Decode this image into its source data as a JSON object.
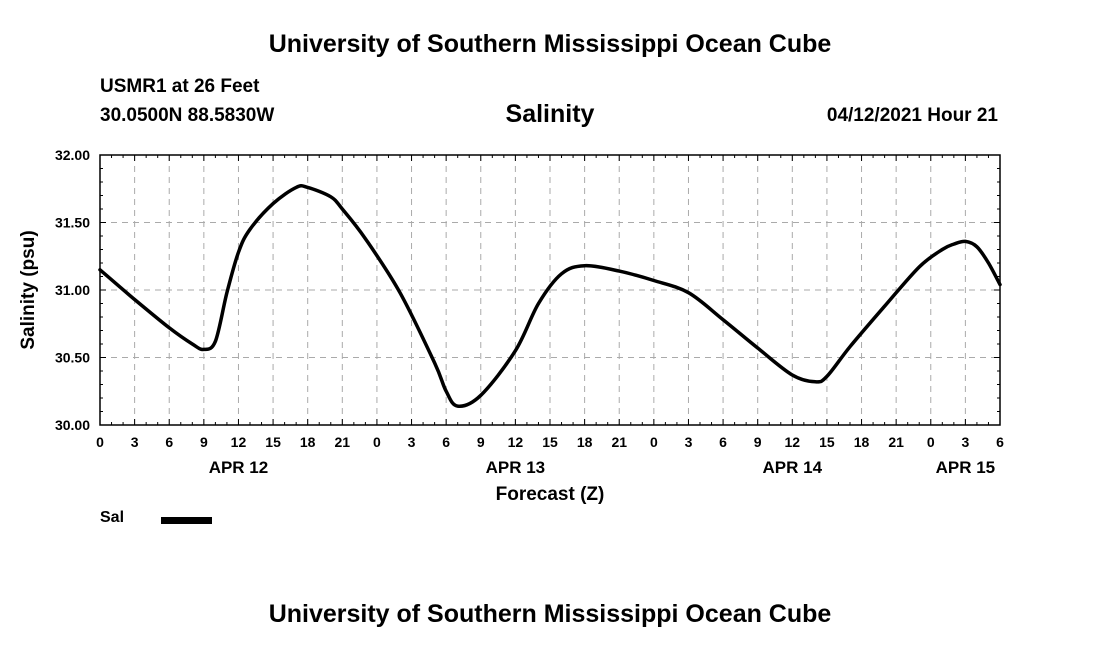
{
  "header": {
    "title": "University of Southern Mississippi Ocean Cube",
    "station": "USMR1 at 26 Feet",
    "coords": "30.0500N  88.5830W",
    "parameter": "Salinity",
    "datetime": "04/12/2021 Hour 21"
  },
  "footer": {
    "title": "University of Southern Mississippi Ocean Cube"
  },
  "legend": {
    "label": "Sal"
  },
  "colors": {
    "line": "#000000",
    "grid": "#aaaaaa"
  },
  "chart_data": {
    "type": "line",
    "title": "Salinity",
    "xlabel": "Forecast (Z)",
    "ylabel": "Salinity (psu)",
    "xlim": [
      0,
      78
    ],
    "ylim": [
      30.0,
      32.0
    ],
    "grid": true,
    "yticks": [
      "30.00",
      "30.50",
      "31.00",
      "31.50",
      "32.00"
    ],
    "ytick_values": [
      30.0,
      30.5,
      31.0,
      31.5,
      32.0
    ],
    "xtick_labels": [
      "0",
      "3",
      "6",
      "9",
      "12",
      "15",
      "18",
      "21",
      "0",
      "3",
      "6",
      "9",
      "12",
      "15",
      "18",
      "21",
      "0",
      "3",
      "6",
      "9",
      "12",
      "15",
      "18",
      "21",
      "0",
      "3",
      "6"
    ],
    "date_labels": [
      {
        "label": "APR 12",
        "hour": 12
      },
      {
        "label": "APR 13",
        "hour": 36
      },
      {
        "label": "APR 14",
        "hour": 60
      },
      {
        "label": "APR 15",
        "hour": 75
      }
    ],
    "series": [
      {
        "name": "Sal",
        "x": [
          0,
          3,
          6,
          8,
          9,
          10,
          11,
          12,
          13,
          15,
          17,
          18,
          20,
          21,
          23,
          26,
          29,
          30,
          31,
          33,
          36,
          38,
          40,
          42,
          45,
          48,
          51,
          54,
          57,
          60,
          62,
          63,
          65,
          68,
          71,
          73,
          74,
          75,
          76,
          77,
          78
        ],
        "y": [
          31.15,
          30.93,
          30.72,
          30.6,
          30.56,
          30.62,
          30.98,
          31.28,
          31.45,
          31.64,
          31.76,
          31.76,
          31.69,
          31.6,
          31.38,
          30.98,
          30.46,
          30.25,
          30.14,
          30.22,
          30.55,
          30.9,
          31.12,
          31.18,
          31.14,
          31.07,
          30.98,
          30.78,
          30.57,
          30.37,
          30.32,
          30.36,
          30.58,
          30.88,
          31.17,
          31.3,
          31.34,
          31.36,
          31.32,
          31.2,
          31.04
        ]
      }
    ]
  }
}
